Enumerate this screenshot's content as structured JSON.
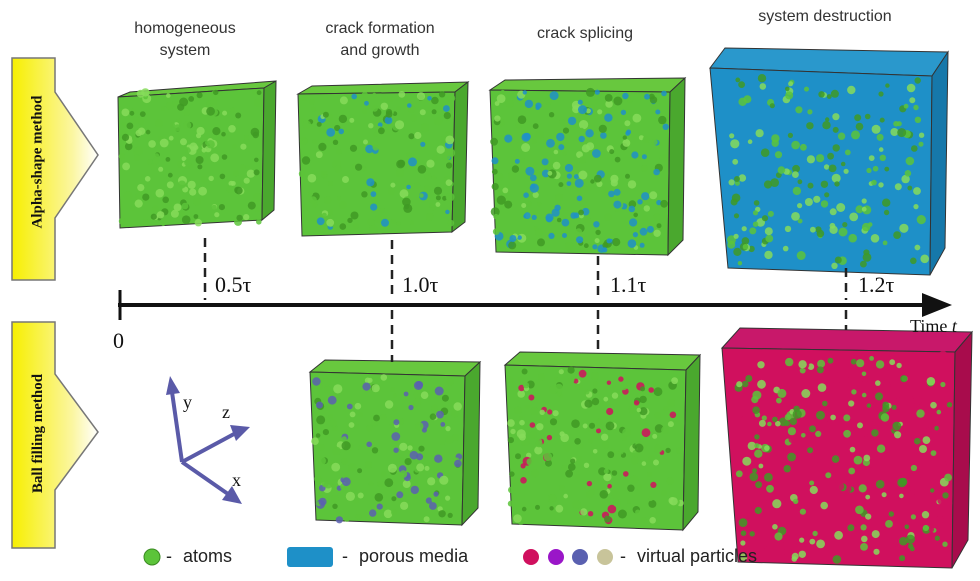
{
  "stages": [
    {
      "label": "homogeneous\nsystem"
    },
    {
      "label": "crack formation\nand growth"
    },
    {
      "label": "crack splicing"
    },
    {
      "label": "system destruction"
    }
  ],
  "methods": {
    "top": "Alpha-shape method",
    "bottom": "Ball filling method"
  },
  "timeline": {
    "origin": "0",
    "ticks": [
      "0.5τ",
      "1.0τ",
      "1.1τ",
      "1.2τ"
    ],
    "axis_label": "Time",
    "axis_var": "t"
  },
  "axes": {
    "x": "x",
    "y": "y",
    "z": "z"
  },
  "legend": {
    "atoms": "atoms",
    "porous": "porous media",
    "virtual": "virtual particles",
    "dash": "-"
  },
  "colors": {
    "atom": "#5cc43a",
    "porous": "#1e90c8",
    "virtual_red": "#d0105e",
    "virtual_purple": "#9a16c8",
    "virtual_blue": "#5a60b0",
    "virtual_tan": "#c8c49a",
    "arrow_fill": "#f2e000"
  }
}
